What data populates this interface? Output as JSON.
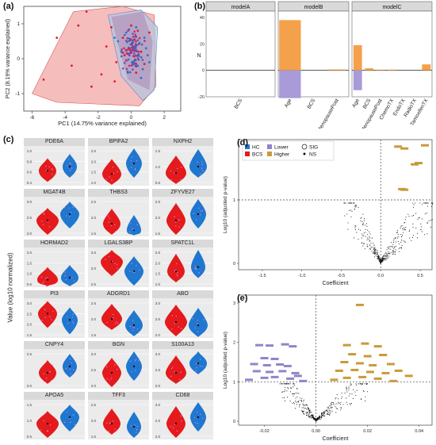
{
  "colors": {
    "hc": "#1f77d0",
    "bcs": "#e41a1c",
    "lower": "#8e86c9",
    "higher": "#c89a3a",
    "bar_orange": "#f5a04a",
    "bar_purple": "#a99ad8",
    "hull_red": "#f3a7a7",
    "hull_blue": "#a9c6e8",
    "panel_bg": "#ebebeb"
  },
  "panels": {
    "a": "(a)",
    "b": "(b)",
    "c": "(c)",
    "d": "(d)",
    "e": "(e)"
  },
  "chart_data": [
    {
      "id": "a",
      "type": "scatter",
      "xlabel": "PC1 (14.75% variance explained)",
      "ylabel": "PC2 (8.19% variance explained)",
      "xlim": [
        -6.5,
        3
      ],
      "ylim": [
        -1.5,
        1.5
      ],
      "xticks": [
        "-6",
        "-4",
        "-2",
        "0",
        "2"
      ],
      "yticks": [
        "-1",
        "0",
        "1"
      ],
      "series": [
        {
          "name": "HC",
          "points": [
            [
              0.6,
              -0.55
            ],
            [
              0.2,
              0.3
            ],
            [
              -1,
              0.6
            ],
            [
              0.4,
              -0.2
            ],
            [
              1,
              0.1
            ],
            [
              -0.2,
              -0.4
            ],
            [
              0.8,
              0.6
            ],
            [
              0.3,
              0.9
            ],
            [
              -0.6,
              0.2
            ],
            [
              1.1,
              -0.1
            ],
            [
              0.5,
              0.45
            ],
            [
              -0.3,
              0.75
            ],
            [
              0.9,
              0.3
            ],
            [
              0.1,
              -0.1
            ],
            [
              -0.8,
              0.5
            ],
            [
              0.7,
              -0.3
            ]
          ]
        },
        {
          "name": "BCS",
          "points": [
            [
              -5.3,
              -0.6
            ],
            [
              -3.2,
              0.95
            ],
            [
              -2.7,
              1.35
            ],
            [
              -4.5,
              0.6
            ],
            [
              -1.8,
              -0.45
            ],
            [
              -0.4,
              0.1
            ],
            [
              -2.4,
              -0.8
            ],
            [
              0.2,
              0.55
            ],
            [
              -1.2,
              0.9
            ],
            [
              0.6,
              0.2
            ],
            [
              -0.9,
              -0.1
            ],
            [
              0.3,
              -0.4
            ],
            [
              1.1,
              0.75
            ],
            [
              -1.5,
              0.35
            ],
            [
              0,
              0.95
            ],
            [
              -0.5,
              0.6
            ],
            [
              0.8,
              -0.15
            ],
            [
              -3.6,
              -0.2
            ],
            [
              -1,
              -0.65
            ],
            [
              0.4,
              0.8
            ]
          ]
        }
      ]
    },
    {
      "id": "b",
      "type": "bar",
      "ylabel": "N",
      "ylim": [
        -20,
        40
      ],
      "yticks": [
        "-20",
        "0",
        "20",
        "40"
      ],
      "facets": [
        {
          "name": "modelA",
          "categories": [
            "BCS"
          ],
          "higher": [
            0
          ],
          "lower": [
            0
          ]
        },
        {
          "name": "modelB",
          "categories": [
            "Age",
            "BCS",
            "MenopausePost"
          ],
          "higher": [
            38,
            0,
            0.6
          ],
          "lower": [
            -21,
            0,
            0
          ]
        },
        {
          "name": "modelC",
          "categories": [
            "Age",
            "BCS",
            "MenopausePost",
            "ChemoTX",
            "EndoTX",
            "RadioTX",
            "TamoxifenTX"
          ],
          "higher": [
            19,
            1.5,
            0.5,
            0.5,
            0,
            0,
            4.5
          ],
          "lower": [
            -15,
            0,
            0,
            0,
            0,
            0,
            0
          ]
        }
      ]
    },
    {
      "id": "c",
      "type": "violin",
      "ylabel": "Value (log10 normalized)",
      "groups": [
        "BCS",
        "HC"
      ],
      "genes": [
        {
          "name": "PDE6A",
          "ticks": [
            "1.0",
            "0.8",
            "0.6",
            "0.4"
          ],
          "bcs_median": 0.62,
          "hc_median": 0.7
        },
        {
          "name": "BPIFA2",
          "ticks": [
            "2.5",
            "2.0",
            "1.5",
            "1.0"
          ],
          "bcs_median": 1.4,
          "hc_median": 1.9
        },
        {
          "name": "NXPH2",
          "ticks": [
            "1.5",
            "1.0",
            "0.5"
          ],
          "bcs_median": 0.8,
          "hc_median": 1.0
        },
        {
          "name": "MGAT4B",
          "ticks": [
            "3.0",
            "2.5",
            "2.0"
          ],
          "bcs_median": 2.4,
          "hc_median": 2.6
        },
        {
          "name": "THBS3",
          "ticks": [
            "2.5",
            "2.0",
            "1.5"
          ],
          "bcs_median": 1.8,
          "hc_median": 1.6
        },
        {
          "name": "ZFYVE27",
          "ticks": [
            "2.5",
            "2.0",
            "1.5"
          ],
          "bcs_median": 1.9,
          "hc_median": 2.1
        },
        {
          "name": "HORMAD2",
          "ticks": [
            "2.0",
            "1.5",
            "1.0",
            "0.5"
          ],
          "bcs_median": 0.7,
          "hc_median": 0.8
        },
        {
          "name": "LGALS3BP",
          "ticks": [
            "3.5",
            "3.0",
            "2.5"
          ],
          "bcs_median": 3.2,
          "hc_median": 2.9
        },
        {
          "name": "SPATC1L",
          "ticks": [
            "2.5",
            "2.0",
            "1.5",
            "1.0"
          ],
          "bcs_median": 1.6,
          "hc_median": 1.8
        },
        {
          "name": "PI3",
          "ticks": [
            "3.0",
            "2.5",
            "2.0",
            "1.5"
          ],
          "bcs_median": 2.5,
          "hc_median": 2.2
        },
        {
          "name": "ADGRD1",
          "ticks": [
            "2.5",
            "2.0",
            "1.5"
          ],
          "bcs_median": 2.0,
          "hc_median": 1.8
        },
        {
          "name": "ABO",
          "ticks": [
            "3.0",
            "2.5",
            "2.0"
          ],
          "bcs_median": 2.4,
          "hc_median": 2.3
        },
        {
          "name": "CNPY4",
          "ticks": [
            "2.5",
            "2.0"
          ],
          "bcs_median": 2.2,
          "hc_median": 2.3
        },
        {
          "name": "BGN",
          "ticks": [
            "3.0",
            "2.5",
            "2.0"
          ],
          "bcs_median": 2.4,
          "hc_median": 2.6
        },
        {
          "name": "S100A13",
          "ticks": [
            "3.0",
            "2.5",
            "2.0"
          ],
          "bcs_median": 2.4,
          "hc_median": 2.7
        },
        {
          "name": "APOA5",
          "ticks": [
            "1.5",
            "1.0",
            "0.5"
          ],
          "bcs_median": 0.9,
          "hc_median": 1.1
        },
        {
          "name": "TFF3",
          "ticks": [
            "2.5",
            "2.0",
            "1.5"
          ],
          "bcs_median": 1.9,
          "hc_median": 1.8
        },
        {
          "name": "CD68",
          "ticks": [
            "3.0",
            "2.5",
            "2.0"
          ],
          "bcs_median": 2.4,
          "hc_median": 2.6
        }
      ]
    },
    {
      "id": "d",
      "type": "scatter",
      "xlabel": "Coefficient",
      "ylabel": "Log10 (adjusted p-value)",
      "xlim": [
        -1.8,
        0.65
      ],
      "ylim": [
        -0.1,
        1.95
      ],
      "xticks": [
        "-1.5",
        "-1.0",
        "-0.5",
        "0.0",
        "0.5"
      ],
      "yticks": [
        "0",
        "1"
      ],
      "hline": 1.0,
      "vline": 0.0,
      "legend": {
        "groups": [
          "HC",
          "BCS"
        ],
        "direction": [
          "Lower",
          "Higher"
        ],
        "significance": [
          "SIG",
          "NS"
        ]
      },
      "higher_sig": [
        [
          0.22,
          1.84
        ],
        [
          0.3,
          1.81
        ],
        [
          0.56,
          1.86
        ],
        [
          0.43,
          1.56
        ],
        [
          0.48,
          1.58
        ],
        [
          0.27,
          1.17
        ],
        [
          0.3,
          1.16
        ]
      ]
    },
    {
      "id": "e",
      "type": "scatter",
      "xlabel": "Coefficient",
      "ylabel": "Log10 (adjusted p-value)",
      "xlim": [
        -0.03,
        0.045
      ],
      "ylim": [
        -0.1,
        3.2
      ],
      "xticks": [
        "-0.02",
        "0.00",
        "0.02",
        "0.04"
      ],
      "yticks": [
        "0",
        "1",
        "2",
        "3"
      ],
      "hline": 1.0,
      "vline": 0.0,
      "lower_sig": [
        [
          -0.022,
          1.93
        ],
        [
          -0.018,
          1.92
        ],
        [
          -0.012,
          1.95
        ],
        [
          -0.009,
          1.9
        ],
        [
          -0.02,
          1.6
        ],
        [
          -0.016,
          1.58
        ],
        [
          -0.024,
          1.45
        ],
        [
          -0.019,
          1.42
        ],
        [
          -0.014,
          1.44
        ],
        [
          -0.011,
          1.4
        ],
        [
          -0.023,
          1.27
        ],
        [
          -0.018,
          1.25
        ],
        [
          -0.013,
          1.27
        ],
        [
          -0.008,
          1.22
        ],
        [
          -0.02,
          1.1
        ],
        [
          -0.016,
          1.12
        ],
        [
          -0.01,
          1.08
        ],
        [
          -0.026,
          1.05
        ],
        [
          -0.005,
          1.02
        ],
        [
          -0.007,
          1.15
        ]
      ],
      "higher_sig": [
        [
          0.017,
          2.95
        ],
        [
          0.012,
          1.93
        ],
        [
          0.019,
          1.97
        ],
        [
          0.024,
          1.9
        ],
        [
          0.014,
          1.7
        ],
        [
          0.02,
          1.65
        ],
        [
          0.026,
          1.68
        ],
        [
          0.011,
          1.5
        ],
        [
          0.017,
          1.47
        ],
        [
          0.022,
          1.42
        ],
        [
          0.029,
          1.45
        ],
        [
          0.009,
          1.28
        ],
        [
          0.015,
          1.3
        ],
        [
          0.021,
          1.25
        ],
        [
          0.027,
          1.22
        ],
        [
          0.032,
          1.28
        ],
        [
          0.012,
          1.1
        ],
        [
          0.018,
          1.12
        ],
        [
          0.024,
          1.08
        ],
        [
          0.007,
          1.05
        ],
        [
          0.03,
          1.02
        ],
        [
          0.036,
          1.15
        ]
      ]
    }
  ]
}
